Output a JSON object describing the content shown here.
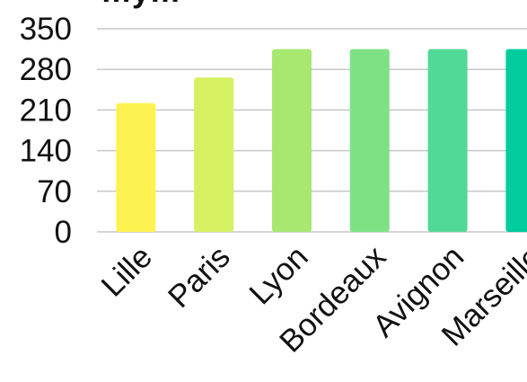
{
  "chart_data": {
    "type": "bar",
    "title": "…y…",
    "categories": [
      "Lille",
      "Paris",
      "Lyon",
      "Bordeaux",
      "Avignon",
      "Marseille"
    ],
    "values": [
      222,
      266,
      315,
      315,
      315,
      315
    ],
    "ylim": [
      0,
      350
    ],
    "yticks": [
      0,
      70,
      140,
      210,
      280,
      350
    ],
    "grid": true,
    "legend": "none",
    "colors": [
      "#fdf350",
      "#d5f061",
      "#a6e870",
      "#7ee285",
      "#50d997",
      "#00cc9e"
    ]
  }
}
